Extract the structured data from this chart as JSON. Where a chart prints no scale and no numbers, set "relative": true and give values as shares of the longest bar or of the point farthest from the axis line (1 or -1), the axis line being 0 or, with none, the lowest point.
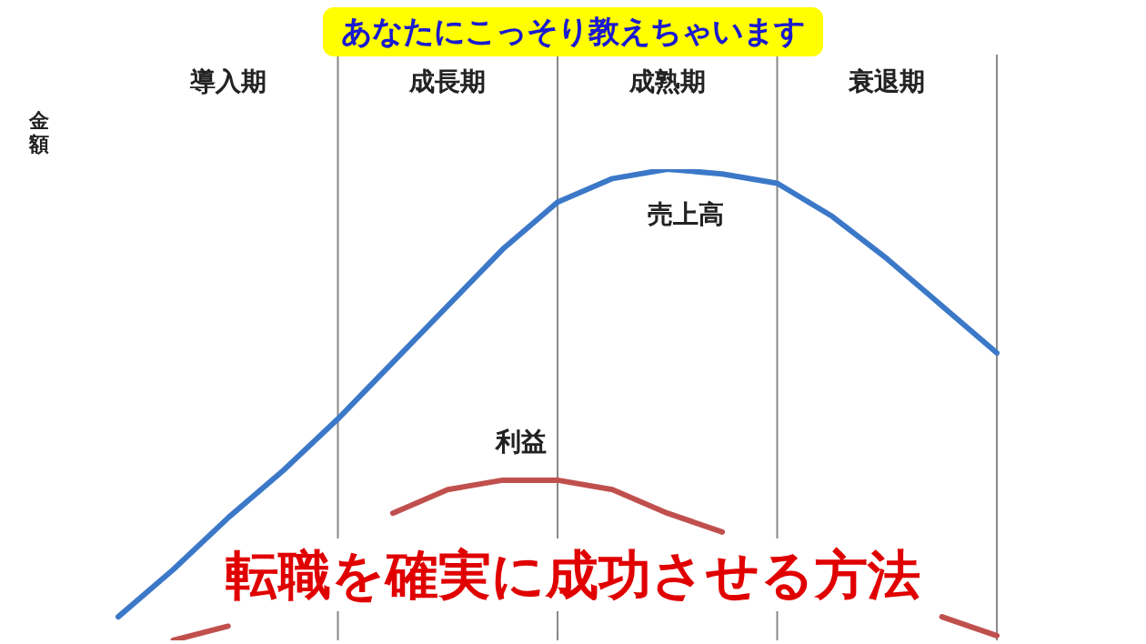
{
  "chart_data": {
    "type": "line",
    "title": "転職を確実に成功させる方法",
    "subtitle": "あなたにこっそり教えちゃいます",
    "ylabel": "金額",
    "relative": true,
    "grid": "x",
    "legend": false,
    "marker": "none",
    "line_style": "solid",
    "annotations": [
      "導入期",
      "成長期",
      "成熟期",
      "衰退期"
    ],
    "categories": [
      null,
      null,
      null,
      null,
      null,
      null,
      null,
      null,
      null,
      null,
      null,
      null,
      null,
      null,
      null,
      null,
      null
    ],
    "series": [
      {
        "name": "売上高",
        "color": "#3c78c8",
        "values": [
          0.05,
          0.15,
          0.26,
          0.36,
          0.47,
          0.59,
          0.71,
          0.83,
          0.93,
          0.98,
          1,
          0.99,
          0.97,
          0.9,
          0.81,
          0.71,
          0.61
        ]
      },
      {
        "name": "利益",
        "color": "#c0504d",
        "values": [
          null,
          0,
          0.03,
          null,
          null,
          0.27,
          0.32,
          0.34,
          0.34,
          0.32,
          0.27,
          0.23,
          null,
          null,
          null,
          0.05,
          0.01
        ]
      }
    ]
  }
}
